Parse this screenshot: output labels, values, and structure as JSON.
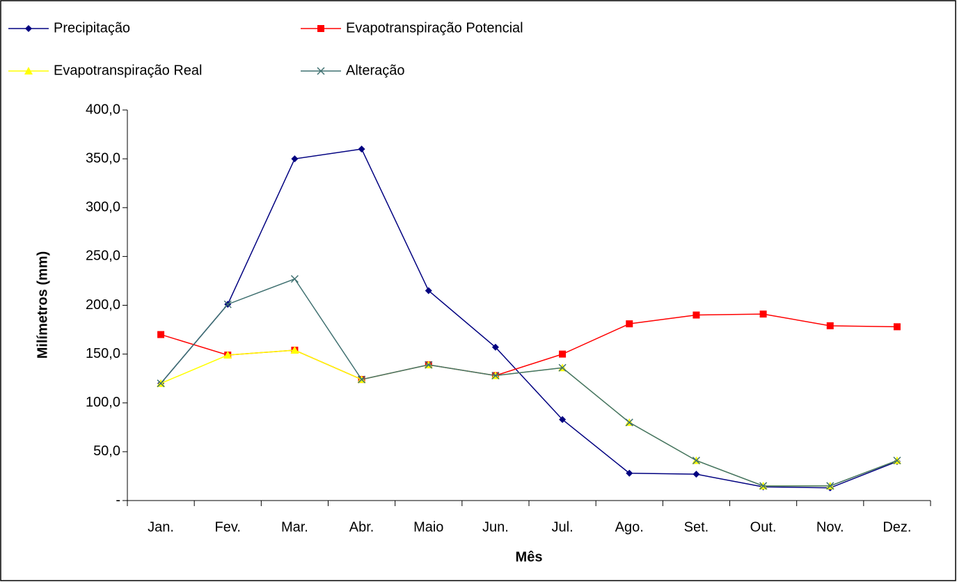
{
  "chart_data": {
    "type": "line",
    "x_label": "Mês",
    "y_label": "Milímetros (mm)",
    "categories": [
      "Jan.",
      "Fev.",
      "Mar.",
      "Abr.",
      "Maio",
      "Jun.",
      "Jul.",
      "Ago.",
      "Set.",
      "Out.",
      "Nov.",
      "Dez."
    ],
    "series": [
      {
        "name": "Precipitação",
        "color": "#000080",
        "marker": "diamond",
        "values": [
          120,
          201,
          350,
          360,
          215,
          157,
          83,
          28,
          27,
          14,
          13,
          40
        ]
      },
      {
        "name": "Evapotranspiração Potencial",
        "color": "#FF0000",
        "marker": "square",
        "values": [
          170,
          149,
          154,
          124,
          139,
          128,
          150,
          181,
          190,
          191,
          179,
          178
        ]
      },
      {
        "name": "Evapotranspiração Real",
        "color": "#FFFF00",
        "marker": "triangle",
        "values": [
          120,
          149,
          154,
          124,
          139,
          128,
          136,
          80,
          41,
          15,
          15,
          41
        ]
      },
      {
        "name": "Alteração",
        "color": "#3F7070",
        "marker": "x",
        "values": [
          120,
          201,
          227,
          124,
          139,
          128,
          136,
          80,
          41,
          15,
          15,
          41
        ]
      }
    ],
    "ylim": [
      0,
      400
    ],
    "yticks": [
      {
        "value": 0,
        "label": "-"
      },
      {
        "value": 50,
        "label": "50,0"
      },
      {
        "value": 100,
        "label": "100,0"
      },
      {
        "value": 150,
        "label": "150,0"
      },
      {
        "value": 200,
        "label": "200,0"
      },
      {
        "value": 250,
        "label": "250,0"
      },
      {
        "value": 300,
        "label": "300,0"
      },
      {
        "value": 350,
        "label": "350,0"
      },
      {
        "value": 400,
        "label": "400,0"
      }
    ],
    "legend": "top",
    "grid": false
  }
}
